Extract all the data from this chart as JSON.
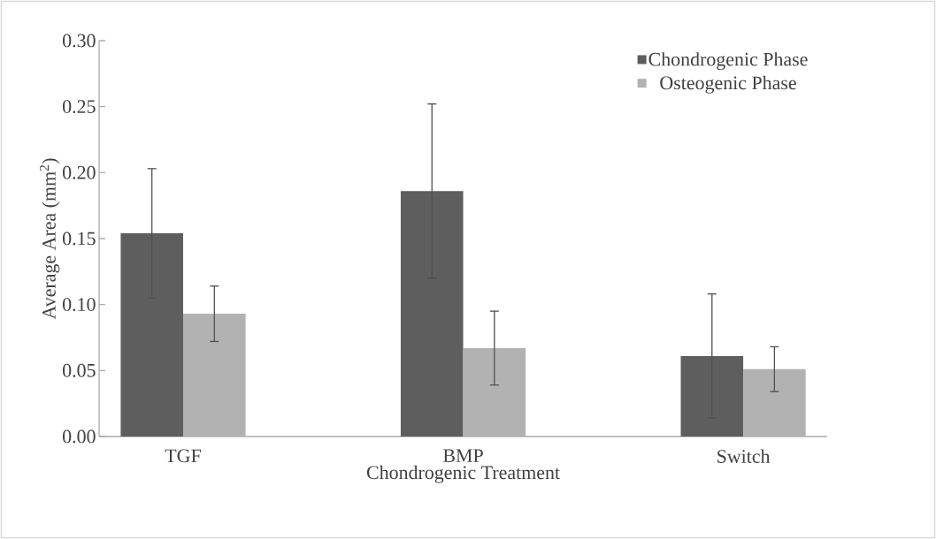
{
  "chart_data": {
    "type": "bar",
    "xlabel": "Chondrogenic Treatment",
    "ylabel": "Average Area (mm$^{2}$)",
    "categories": [
      "TGF",
      "BMP",
      "Switch"
    ],
    "series": [
      {
        "name": "Chondrogenic Phase",
        "color": "#5e5e5e",
        "values": [
          0.154,
          0.186,
          0.061
        ],
        "errors": [
          0.049,
          0.066,
          0.047
        ]
      },
      {
        "name": "Osteogenic Phase",
        "color": "#b2b2b2",
        "values": [
          0.093,
          0.067,
          0.051
        ],
        "errors": [
          0.021,
          0.028,
          0.017
        ]
      }
    ],
    "ylim": [
      0,
      0.3
    ],
    "yticks": [
      {
        "value": 0,
        "label": "0.00"
      },
      {
        "value": 0.05,
        "label": "0.05"
      },
      {
        "value": 0.1,
        "label": "0.10"
      },
      {
        "value": 0.15,
        "label": "0.15"
      },
      {
        "value": 0.2,
        "label": "0.20"
      },
      {
        "value": 0.25,
        "label": "0.25"
      },
      {
        "value": 0.3,
        "label": "0.30"
      }
    ],
    "grid": false,
    "legend": "top right"
  }
}
